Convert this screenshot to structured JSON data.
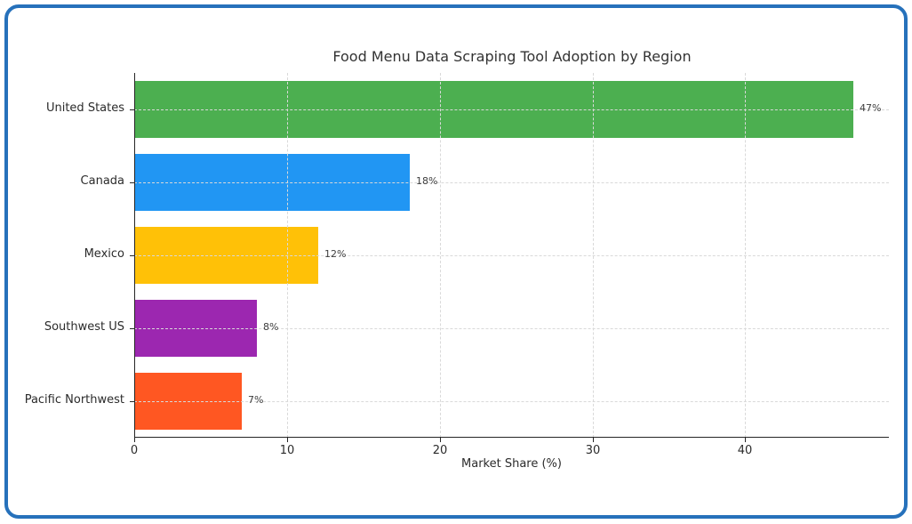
{
  "frame": {
    "border_color": "#2671bb"
  },
  "chart_data": {
    "type": "bar",
    "orientation": "horizontal",
    "title": "Food Menu Data Scraping Tool Adoption by Region",
    "xlabel": "Market Share (%)",
    "ylabel": "",
    "categories": [
      "United States",
      "Canada",
      "Mexico",
      "Southwest US",
      "Pacific Northwest"
    ],
    "values": [
      47,
      18,
      12,
      8,
      7
    ],
    "value_labels": [
      "47%",
      "18%",
      "12%",
      "8%",
      "7%"
    ],
    "bar_colors": [
      "#4caf50",
      "#2196f3",
      "#ffc107",
      "#9c27b0",
      "#ff5722"
    ],
    "xticks": [
      0,
      10,
      20,
      30,
      40
    ],
    "xtick_labels": [
      "0",
      "10",
      "20",
      "30",
      "40"
    ],
    "xlim": [
      0,
      49.4
    ],
    "grid": "dashed, light gray, both axes, drawn over bars",
    "legend": "none"
  }
}
